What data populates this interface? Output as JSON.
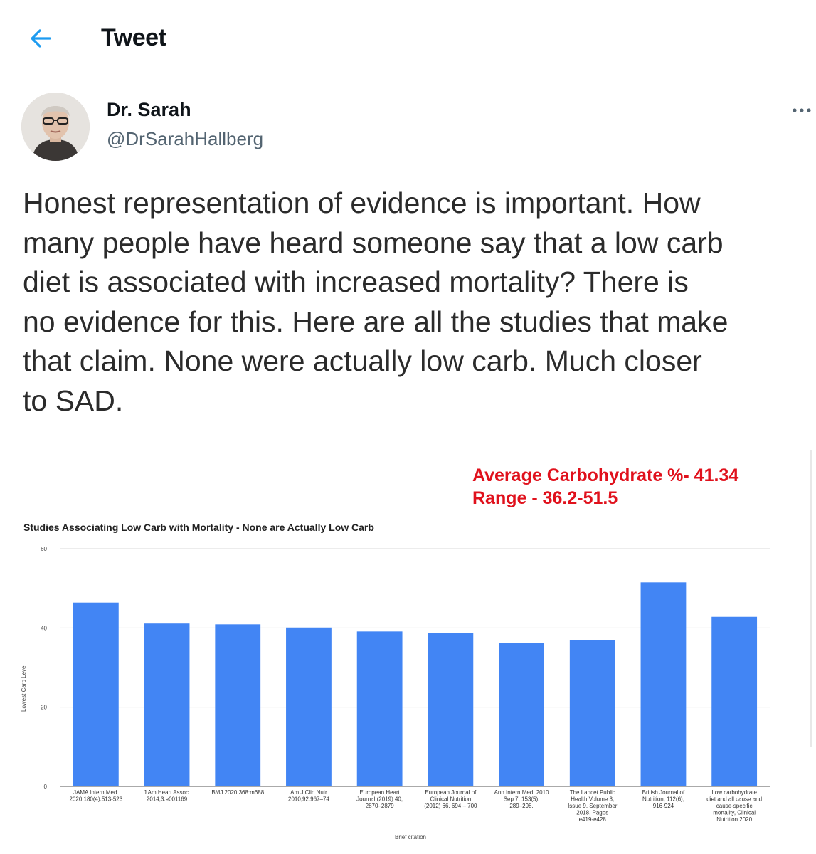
{
  "header": {
    "title": "Tweet",
    "back_icon": "arrow-left-icon"
  },
  "tweet": {
    "author_name": "Dr. Sarah",
    "author_handle": "@DrSarahHallberg",
    "more_icon": "more-horizontal-icon",
    "text_lines": [
      "Honest representation of evidence is important.  How",
      "many people have heard someone say that a low carb",
      "diet is associated with increased mortality?  There is",
      "no evidence for this.  Here are all the studies that make",
      "that claim.  None were actually low carb. Much closer",
      "to SAD."
    ]
  },
  "colors": {
    "accent": "#1d9bf0",
    "bar": "#4285f4",
    "annotation": "#e0111c"
  },
  "annotation": {
    "line1": "Average Carbohydrate %- 41.34",
    "line2": "Range - 36.2-51.5"
  },
  "chart_data": {
    "type": "bar",
    "title": "Studies Associating Low Carb with Mortality - None are Actually Low Carb",
    "xlabel": "Brief citation",
    "ylabel": "Lowest Carb Level",
    "ylim": [
      0,
      60
    ],
    "yticks": [
      "0",
      "20",
      "40",
      "60"
    ],
    "grid": true,
    "categories": [
      [
        "JAMA Intern Med.",
        "2020;180(4):513-523"
      ],
      [
        "J Am Heart Assoc.",
        "2014;3:e001169"
      ],
      [
        "BMJ 2020;368:m688"
      ],
      [
        "Am J Clin Nutr",
        "2010;92:967–74"
      ],
      [
        "European Heart",
        "Journal (2019) 40,",
        "2870–2879"
      ],
      [
        "European Journal of",
        "Clinical Nutrition",
        "(2012) 66, 694 – 700"
      ],
      [
        "Ann Intern Med. 2010",
        "Sep 7; 153(5):",
        "289–298."
      ],
      [
        "The Lancet Public",
        "Health Volume 3,",
        "Issue 9, September",
        "2018, Pages",
        "e419-e428"
      ],
      [
        "British Journal of",
        "Nutrition, 112(6),",
        "916-924"
      ],
      [
        "Low carbohydrate",
        "diet and all cause and",
        "cause-specific",
        "mortality, Clinical",
        "Nutrition 2020"
      ]
    ],
    "values": [
      46.4,
      41.1,
      40.9,
      40.1,
      39.1,
      38.7,
      36.2,
      37.0,
      51.5,
      42.8
    ]
  }
}
